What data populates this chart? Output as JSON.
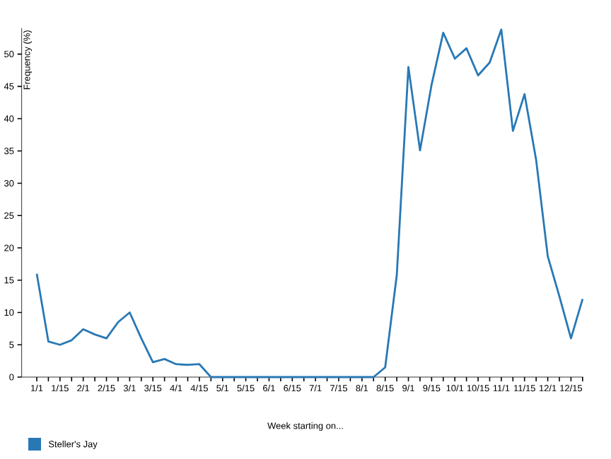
{
  "chart_data": {
    "type": "line",
    "xlabel": "Week starting on...",
    "ylabel": "Frequency (%)",
    "categories": [
      "1/1",
      null,
      "1/15",
      null,
      "2/1",
      null,
      "2/15",
      null,
      "3/1",
      null,
      "3/15",
      null,
      "4/1",
      null,
      "4/15",
      null,
      "5/1",
      null,
      "5/15",
      null,
      "6/1",
      null,
      "6/15",
      null,
      "7/1",
      null,
      "7/15",
      null,
      "8/1",
      null,
      "8/15",
      null,
      "9/1",
      null,
      "9/15",
      null,
      "10/1",
      null,
      "10/15",
      null,
      "11/1",
      null,
      "11/15",
      null,
      "12/1",
      null,
      "12/15",
      null
    ],
    "series": [
      {
        "name": "Steller's Jay",
        "color": "#2878b5",
        "values": [
          16,
          5.5,
          5.0,
          5.7,
          7.4,
          6.6,
          6.0,
          8.5,
          10,
          6,
          2.3,
          2.8,
          2.0,
          1.9,
          2.0,
          0,
          0,
          0,
          0,
          0,
          0,
          0,
          0,
          0,
          0,
          0,
          0,
          0,
          0,
          0,
          1.5,
          15.8,
          48.0,
          35.1,
          45.3,
          53.3,
          49.3,
          50.9,
          46.7,
          48.7,
          53.8,
          38.1,
          43.8,
          33.6,
          18.7,
          12.5,
          6.0,
          12.1
        ]
      }
    ],
    "ylim": [
      0,
      54
    ],
    "yticks": [
      0,
      5,
      10,
      15,
      20,
      25,
      30,
      35,
      40,
      45,
      50
    ],
    "legend": "bottom left"
  }
}
